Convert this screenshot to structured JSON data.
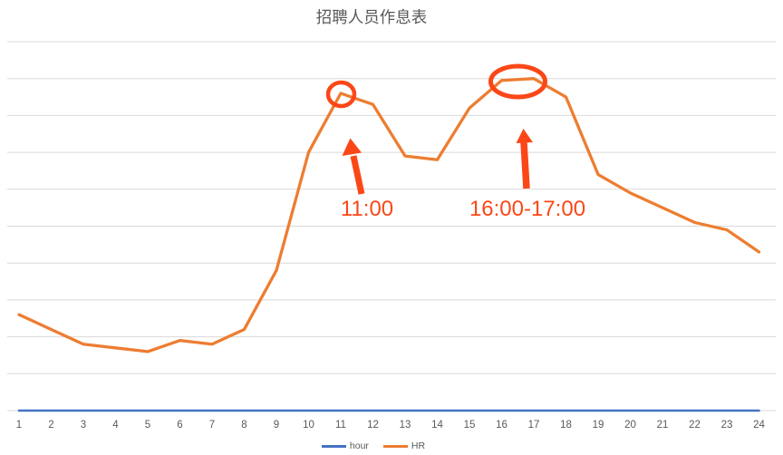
{
  "colors": {
    "gridline": "#D9D9D9",
    "axis_text": "#595959",
    "title_text": "#595959",
    "annotation": "#FB4718",
    "series_hour": "#4472C4",
    "series_hr": "#ED7D31"
  },
  "chart_data": {
    "type": "line",
    "title": "招聘人员作息表",
    "xlabel": "",
    "ylabel": "",
    "x": [
      1,
      2,
      3,
      4,
      5,
      6,
      7,
      8,
      9,
      10,
      11,
      12,
      13,
      14,
      15,
      16,
      17,
      18,
      19,
      20,
      21,
      22,
      23,
      24
    ],
    "ylim": [
      0,
      10
    ],
    "y_gridline_interval": 1,
    "y_axis_labels_visible": false,
    "grid": "horizontal only",
    "legend_position": "bottom-center",
    "series": [
      {
        "name": "hour",
        "color": "#4472C4",
        "values": [
          0,
          0,
          0,
          0,
          0,
          0,
          0,
          0,
          0,
          0,
          0,
          0,
          0,
          0,
          0,
          0,
          0,
          0,
          0,
          0,
          0,
          0,
          0,
          0
        ]
      },
      {
        "name": "HR",
        "color": "#ED7D31",
        "values": [
          2.6,
          2.2,
          1.8,
          1.7,
          1.6,
          1.9,
          1.8,
          2.2,
          3.8,
          7.0,
          8.6,
          8.3,
          6.9,
          6.8,
          8.2,
          8.95,
          9.0,
          8.5,
          6.4,
          5.9,
          5.5,
          5.1,
          4.9,
          4.3
        ]
      }
    ],
    "annotations": [
      {
        "label": "11:00",
        "shape": "circle",
        "marks": "peak at hour 11"
      },
      {
        "label": "16:00-17:00",
        "shape": "ellipse",
        "marks": "plateau from hour 16 to 17"
      }
    ],
    "note": "Y axis shows no labels; HR values estimated in gridline units (one horizontal gridline = 1 unit, chart top = 10). The hour series renders flat on the baseline at this scale."
  }
}
